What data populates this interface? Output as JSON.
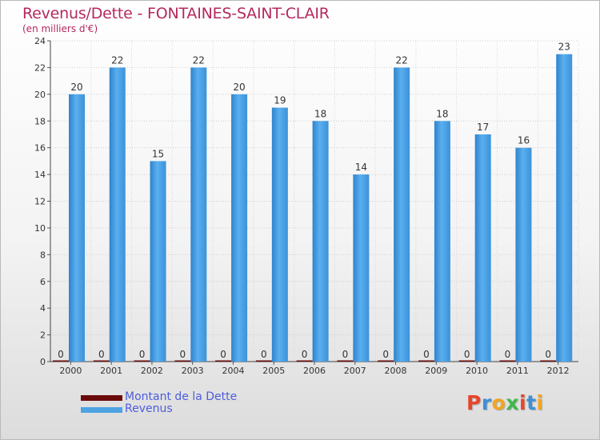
{
  "chart_data": {
    "type": "bar",
    "title": "Revenus/Dette - FONTAINES-SAINT-CLAIR",
    "subtitle": "(en milliers d'€)",
    "categories": [
      "2000",
      "2001",
      "2002",
      "2003",
      "2004",
      "2005",
      "2006",
      "2007",
      "2008",
      "2009",
      "2010",
      "2011",
      "2012"
    ],
    "series": [
      {
        "name": "Montant de la Dette",
        "color": "#6b0a0a",
        "values": [
          0,
          0,
          0,
          0,
          0,
          0,
          0,
          0,
          0,
          0,
          0,
          0,
          0
        ]
      },
      {
        "name": "Revenus",
        "color": "#4da3e3",
        "values": [
          20,
          22,
          15,
          22,
          20,
          19,
          18,
          14,
          22,
          18,
          17,
          16,
          23
        ]
      }
    ],
    "ylim": [
      0,
      24
    ],
    "yticks": [
      0,
      2,
      4,
      6,
      8,
      10,
      12,
      14,
      16,
      18,
      20,
      22,
      24
    ],
    "grid": true,
    "legend_position": "bottom-left"
  },
  "logo": {
    "text": "Proxiti",
    "letters": [
      "P",
      "r",
      "o",
      "x",
      "i",
      "t",
      "i"
    ],
    "colors": [
      "#e8452c",
      "#3f8fd6",
      "#f2a51f",
      "#3fb94a",
      "#e8452c",
      "#3f8fd6",
      "#f2a51f"
    ]
  }
}
